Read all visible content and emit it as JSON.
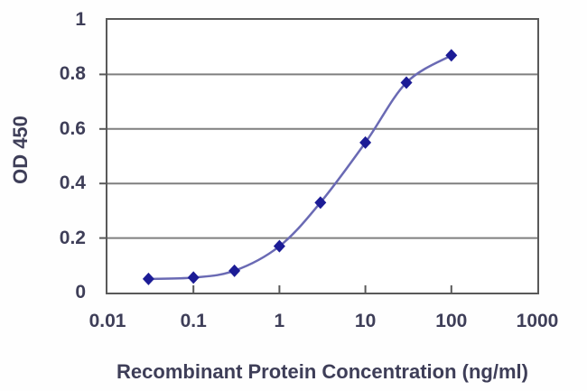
{
  "figure": {
    "background": "#ffffff"
  },
  "chart_data": {
    "type": "line",
    "title": "",
    "xlabel": "Recombinant Protein Concentration (ng/ml)",
    "ylabel": "OD 450",
    "x_scale": "log10",
    "xlim": [
      0.01,
      1000
    ],
    "ylim": [
      0,
      1
    ],
    "x_ticks": [
      0.01,
      0.1,
      1,
      10,
      100,
      1000
    ],
    "x_tick_labels": [
      "0.01",
      "0.1",
      "1",
      "10",
      "100",
      "1000"
    ],
    "y_ticks": [
      0,
      0.2,
      0.4,
      0.6,
      0.8,
      1
    ],
    "y_tick_labels": [
      "0",
      "0.2",
      "0.4",
      "0.6",
      "0.8",
      "1"
    ],
    "grid": "horizontal-only",
    "legend": "none",
    "series": [
      {
        "name": "OD 450",
        "marker": "diamond",
        "x": [
          0.03,
          0.1,
          0.3,
          1,
          3,
          10,
          30,
          100
        ],
        "y": [
          0.05,
          0.055,
          0.08,
          0.17,
          0.33,
          0.55,
          0.77,
          0.87
        ]
      }
    ],
    "colors": {
      "line": "#6a6ab4",
      "marker": "#1c1c96",
      "gridline": "#7f7f7f",
      "frame": "#595959",
      "text": "#3e3e58"
    }
  }
}
